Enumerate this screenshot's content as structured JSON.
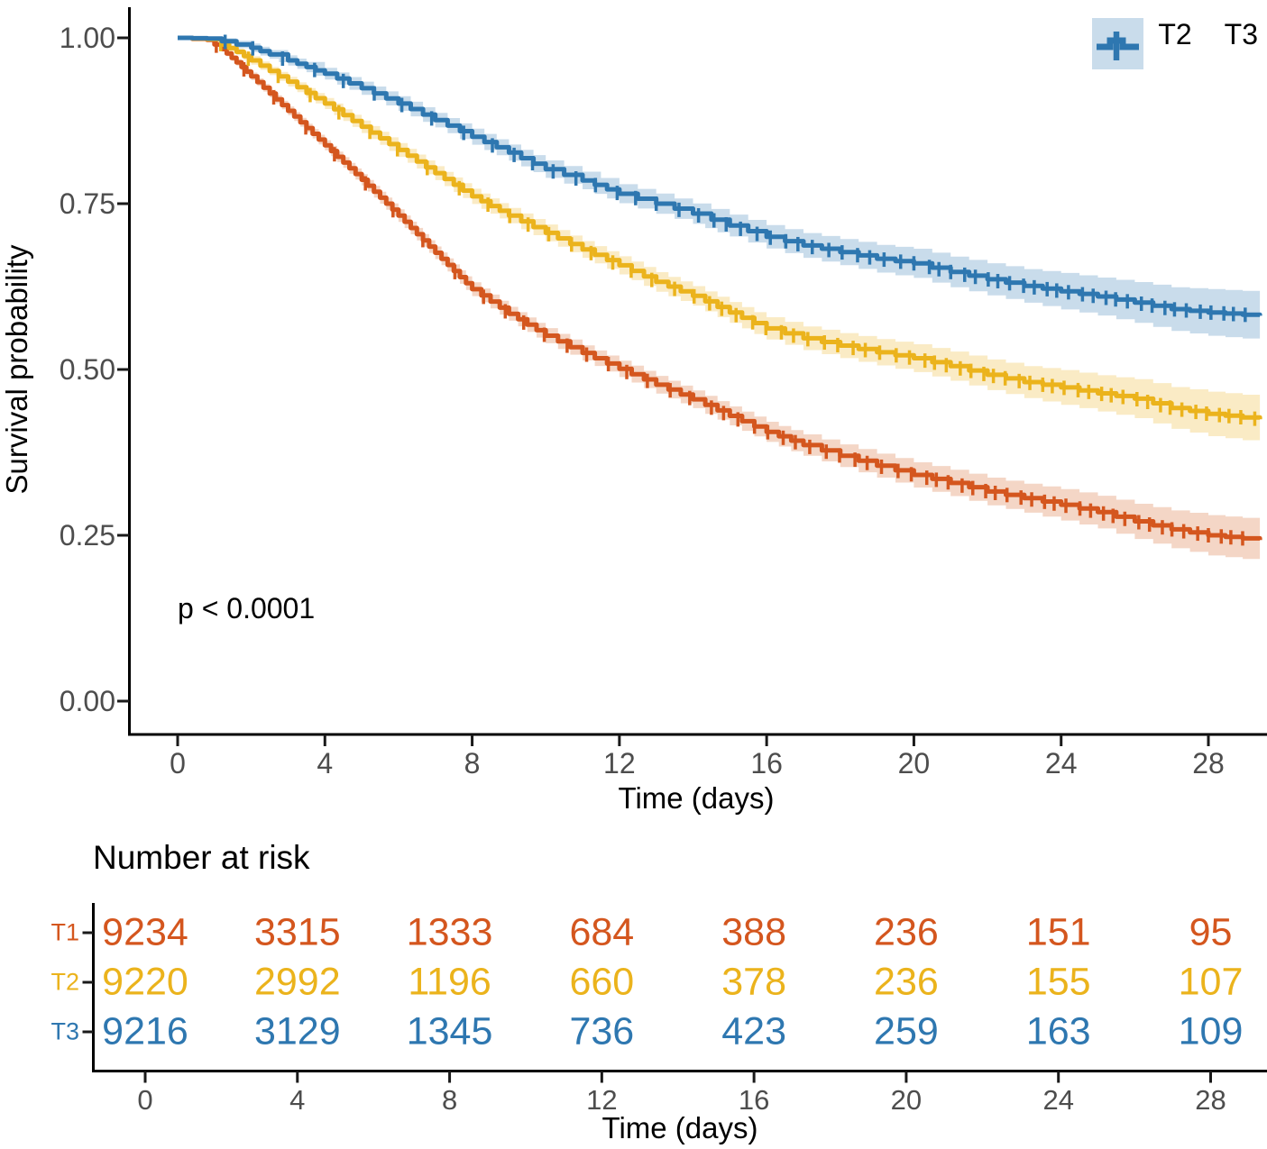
{
  "chart_data": {
    "type": "line",
    "subtype": "kaplan-meier-survival",
    "title": "",
    "xlabel": "Time (days)",
    "ylabel": "Survival probability",
    "pvalue_annotation": "p < 0.0001",
    "legend_position": "top-right",
    "xlim": [
      0,
      29.5
    ],
    "ylim": [
      0,
      1
    ],
    "x_ticks": [
      0,
      4,
      8,
      12,
      16,
      20,
      24,
      28
    ],
    "y_ticks": [
      1.0,
      0.75,
      0.5,
      0.25,
      0.0
    ],
    "grid": false,
    "x": [
      0,
      0.8,
      1.2,
      1.6,
      2,
      2.5,
      3,
      3.5,
      4,
      5,
      6,
      7,
      8,
      9,
      10,
      11,
      12,
      13,
      14,
      15,
      16,
      17,
      18,
      19,
      20,
      21,
      22,
      23,
      24,
      25,
      26,
      27,
      28,
      29.4
    ],
    "ci_halfwidth": [
      0.002,
      0.003,
      0.004,
      0.005,
      0.006,
      0.006,
      0.007,
      0.007,
      0.008,
      0.009,
      0.01,
      0.01,
      0.011,
      0.011,
      0.012,
      0.012,
      0.013,
      0.014,
      0.014,
      0.015,
      0.016,
      0.017,
      0.018,
      0.019,
      0.02,
      0.021,
      0.022,
      0.023,
      0.025,
      0.026,
      0.028,
      0.03,
      0.032,
      0.033
    ],
    "series": [
      {
        "name": "T1",
        "color": "#D4561E",
        "fill": "#F4D6C6",
        "ci_scale": 0.95,
        "values": [
          1.0,
          0.997,
          0.983,
          0.963,
          0.942,
          0.916,
          0.89,
          0.864,
          0.838,
          0.786,
          0.732,
          0.676,
          0.621,
          0.584,
          0.551,
          0.525,
          0.501,
          0.477,
          0.455,
          0.43,
          0.406,
          0.386,
          0.37,
          0.355,
          0.341,
          0.329,
          0.316,
          0.306,
          0.296,
          0.285,
          0.271,
          0.259,
          0.25,
          0.243
        ]
      },
      {
        "name": "T2",
        "color": "#EBB31C",
        "fill": "#FAEBC5",
        "ci_scale": 1.05,
        "values": [
          1.0,
          0.998,
          0.99,
          0.979,
          0.966,
          0.95,
          0.934,
          0.917,
          0.901,
          0.866,
          0.831,
          0.796,
          0.761,
          0.732,
          0.706,
          0.681,
          0.657,
          0.632,
          0.611,
          0.586,
          0.562,
          0.547,
          0.536,
          0.526,
          0.517,
          0.505,
          0.492,
          0.481,
          0.473,
          0.464,
          0.456,
          0.442,
          0.433,
          0.425
        ]
      },
      {
        "name": "T3",
        "color": "#2E77B0",
        "fill": "#C9DCEB",
        "ci_scale": 1.1,
        "values": [
          1.0,
          0.999,
          0.995,
          0.99,
          0.985,
          0.975,
          0.966,
          0.956,
          0.946,
          0.924,
          0.901,
          0.876,
          0.851,
          0.827,
          0.802,
          0.785,
          0.765,
          0.75,
          0.735,
          0.717,
          0.7,
          0.687,
          0.677,
          0.667,
          0.66,
          0.647,
          0.636,
          0.626,
          0.618,
          0.61,
          0.601,
          0.591,
          0.586,
          0.581
        ]
      }
    ],
    "number_at_risk": {
      "title": "Number at risk",
      "times": [
        0,
        4,
        8,
        12,
        16,
        20,
        24,
        28
      ],
      "rows": [
        {
          "name": "T1",
          "counts": [
            9234,
            3315,
            1333,
            684,
            388,
            236,
            151,
            95
          ]
        },
        {
          "name": "T2",
          "counts": [
            9220,
            2992,
            1196,
            660,
            378,
            236,
            155,
            107
          ]
        },
        {
          "name": "T3",
          "counts": [
            9216,
            3129,
            1345,
            736,
            423,
            259,
            163,
            109
          ]
        }
      ]
    }
  }
}
